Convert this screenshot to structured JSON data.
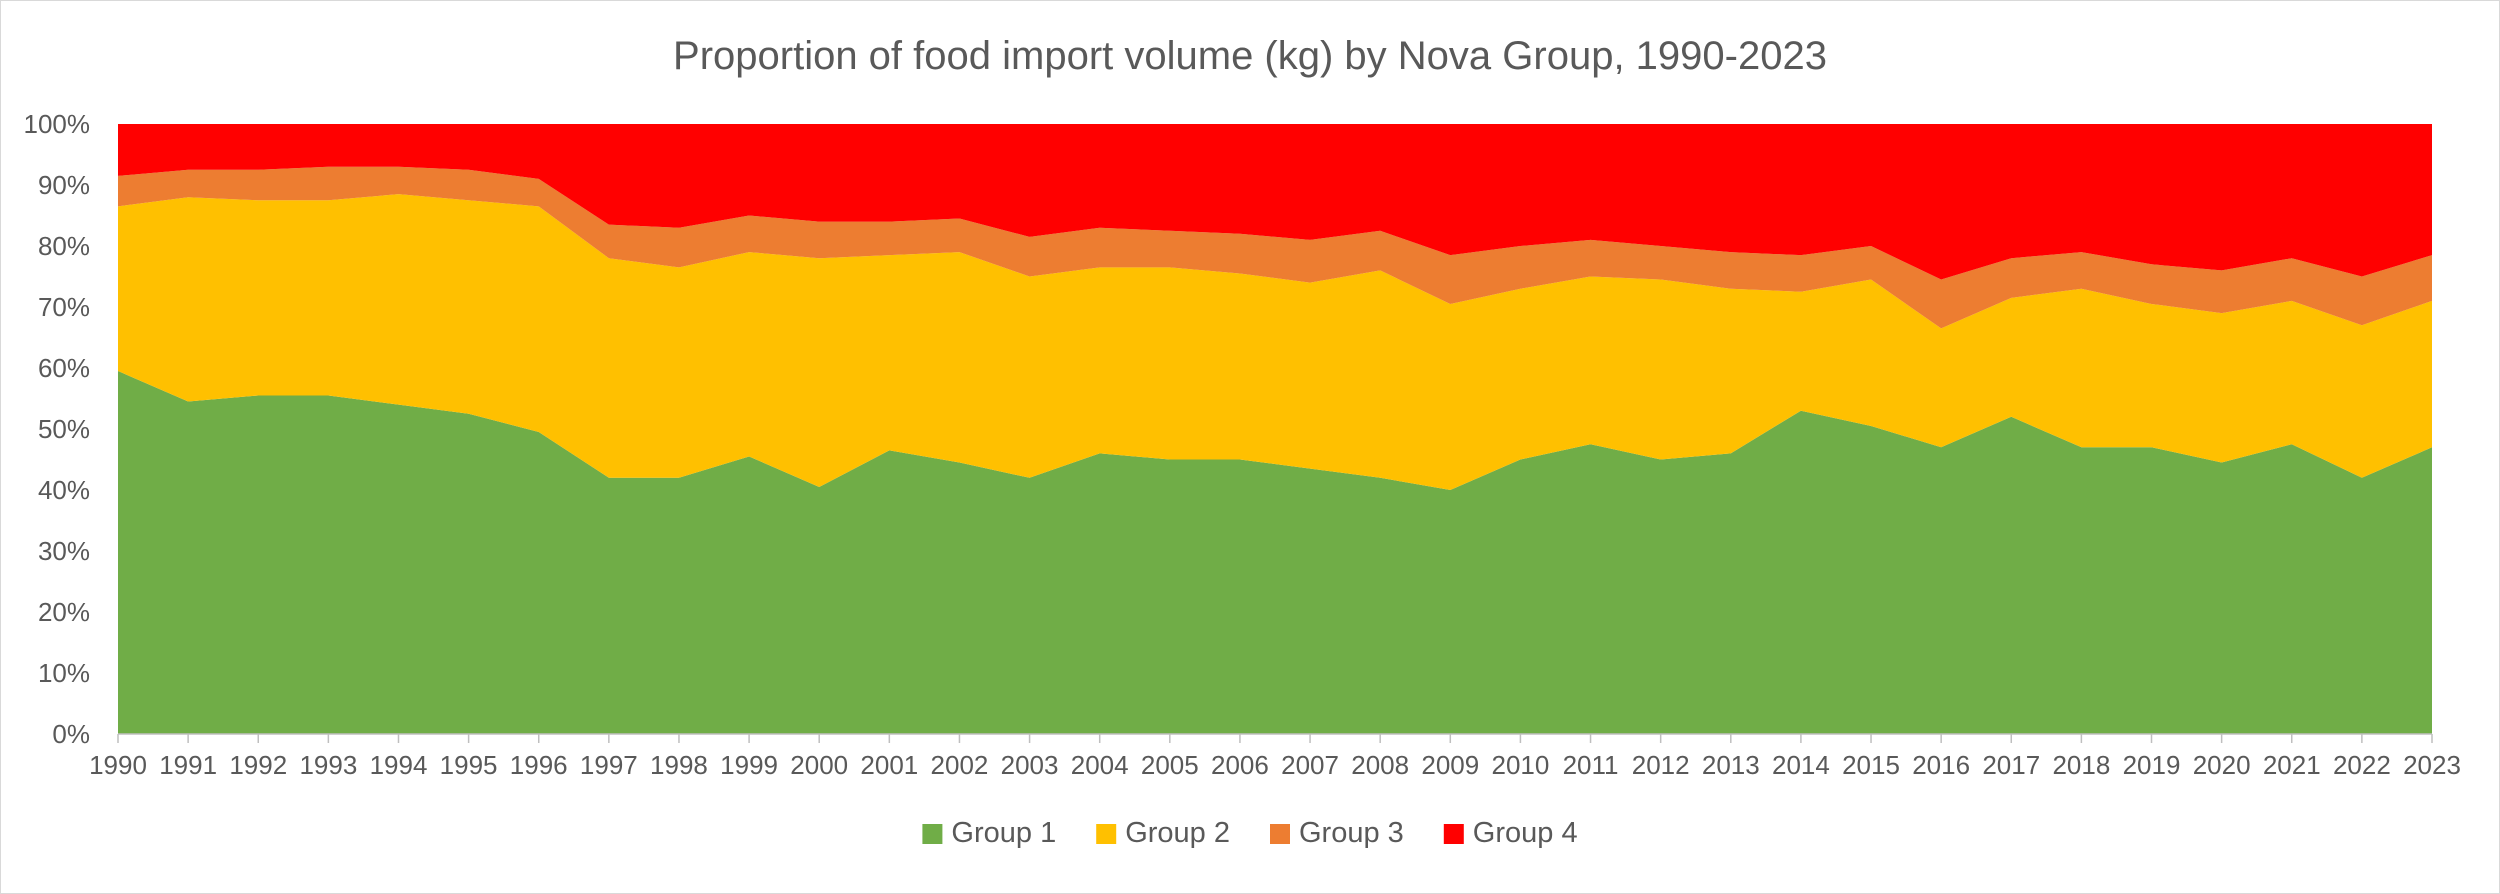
{
  "chart_data": {
    "type": "area",
    "stacked": "percent",
    "title": "Proportion of food import volume (kg) by Nova Group, 1990-2023",
    "xlabel": "",
    "ylabel": "",
    "ylim": [
      0,
      100
    ],
    "y_tick_values": [
      0,
      10,
      20,
      30,
      40,
      50,
      60,
      70,
      80,
      90,
      100
    ],
    "y_tick_labels": [
      "0%",
      "10%",
      "20%",
      "30%",
      "40%",
      "50%",
      "60%",
      "70%",
      "80%",
      "90%",
      "100%"
    ],
    "grid": false,
    "legend_position": "bottom",
    "x": [
      "1990",
      "1991",
      "1992",
      "1993",
      "1994",
      "1995",
      "1996",
      "1997",
      "1998",
      "1999",
      "2000",
      "2001",
      "2002",
      "2003",
      "2004",
      "2005",
      "2006",
      "2007",
      "2008",
      "2009",
      "2010",
      "2011",
      "2012",
      "2013",
      "2014",
      "2015",
      "2016",
      "2017",
      "2018",
      "2019",
      "2020",
      "2021",
      "2022",
      "2023"
    ],
    "series": [
      {
        "name": "Group 1",
        "color": "#70ad47",
        "values": [
          59.5,
          54.5,
          55.5,
          55.5,
          54.0,
          52.5,
          49.5,
          42.0,
          42.0,
          45.5,
          40.5,
          46.5,
          44.5,
          42.0,
          46.0,
          45.0,
          45.0,
          43.5,
          42.0,
          40.0,
          45.0,
          47.5,
          45.0,
          46.0,
          53.0,
          50.5,
          47.0,
          52.0,
          47.0,
          47.0,
          44.5,
          47.5,
          42.0,
          47.0
        ]
      },
      {
        "name": "Group 2",
        "color": "#ffc000",
        "values": [
          27.0,
          33.5,
          32.0,
          32.0,
          34.5,
          35.0,
          37.0,
          36.0,
          34.5,
          33.5,
          37.5,
          32.0,
          34.5,
          33.0,
          30.5,
          31.5,
          30.5,
          30.5,
          34.0,
          30.5,
          28.0,
          27.5,
          29.5,
          27.0,
          19.5,
          24.0,
          19.5,
          19.5,
          26.0,
          23.5,
          24.5,
          23.5,
          25.0,
          24.0
        ]
      },
      {
        "name": "Group 3",
        "color": "#ed7d31",
        "values": [
          5.0,
          4.5,
          5.0,
          5.5,
          4.5,
          5.0,
          4.5,
          5.5,
          6.5,
          6.0,
          6.0,
          5.5,
          5.5,
          6.5,
          6.5,
          6.0,
          6.5,
          7.0,
          6.5,
          8.0,
          7.0,
          6.0,
          5.5,
          6.0,
          6.0,
          5.5,
          8.0,
          6.5,
          6.0,
          6.5,
          7.0,
          7.0,
          8.0,
          7.5
        ]
      },
      {
        "name": "Group 4",
        "color": "#ff0000",
        "values": [
          8.5,
          7.5,
          7.5,
          7.0,
          7.0,
          7.5,
          9.0,
          16.5,
          17.0,
          15.0,
          16.0,
          16.0,
          15.5,
          18.5,
          17.0,
          17.5,
          18.0,
          19.0,
          17.5,
          21.5,
          20.0,
          19.0,
          20.0,
          21.0,
          21.5,
          20.0,
          25.5,
          22.0,
          21.0,
          23.0,
          24.0,
          22.0,
          25.0,
          21.5
        ]
      }
    ]
  }
}
